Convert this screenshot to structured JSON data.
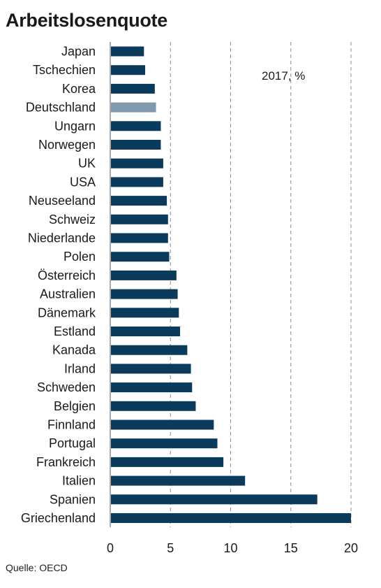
{
  "chart_data": {
    "type": "bar",
    "orientation": "horizontal",
    "title": "Arbeitslosenquote",
    "annotation": "2017, %",
    "source": "Quelle: OECD",
    "categories": [
      "Japan",
      "Tschechien",
      "Korea",
      "Deutschland",
      "Ungarn",
      "Norwegen",
      "UK",
      "USA",
      "Neuseeland",
      "Schweiz",
      "Niederlande",
      "Polen",
      "Österreich",
      "Australien",
      "Dänemark",
      "Estland",
      "Kanada",
      "Irland",
      "Schweden",
      "Belgien",
      "Finnland",
      "Portugal",
      "Frankreich",
      "Italien",
      "Spanien",
      "Griechenland"
    ],
    "values": [
      2.8,
      2.9,
      3.7,
      3.8,
      4.2,
      4.2,
      4.4,
      4.4,
      4.7,
      4.8,
      4.8,
      4.9,
      5.5,
      5.6,
      5.7,
      5.8,
      6.4,
      6.7,
      6.8,
      7.1,
      8.6,
      8.9,
      9.4,
      11.2,
      17.2,
      20.0
    ],
    "highlight_category": "Deutschland",
    "colors": {
      "bar": "#0b3b5c",
      "highlight": "#7f9aae",
      "grid": "#8c8c8c"
    },
    "xlim": [
      0,
      20
    ],
    "xticks": [
      0,
      5,
      10,
      15,
      20
    ],
    "grid": "vertical dashed",
    "legend": "none"
  }
}
